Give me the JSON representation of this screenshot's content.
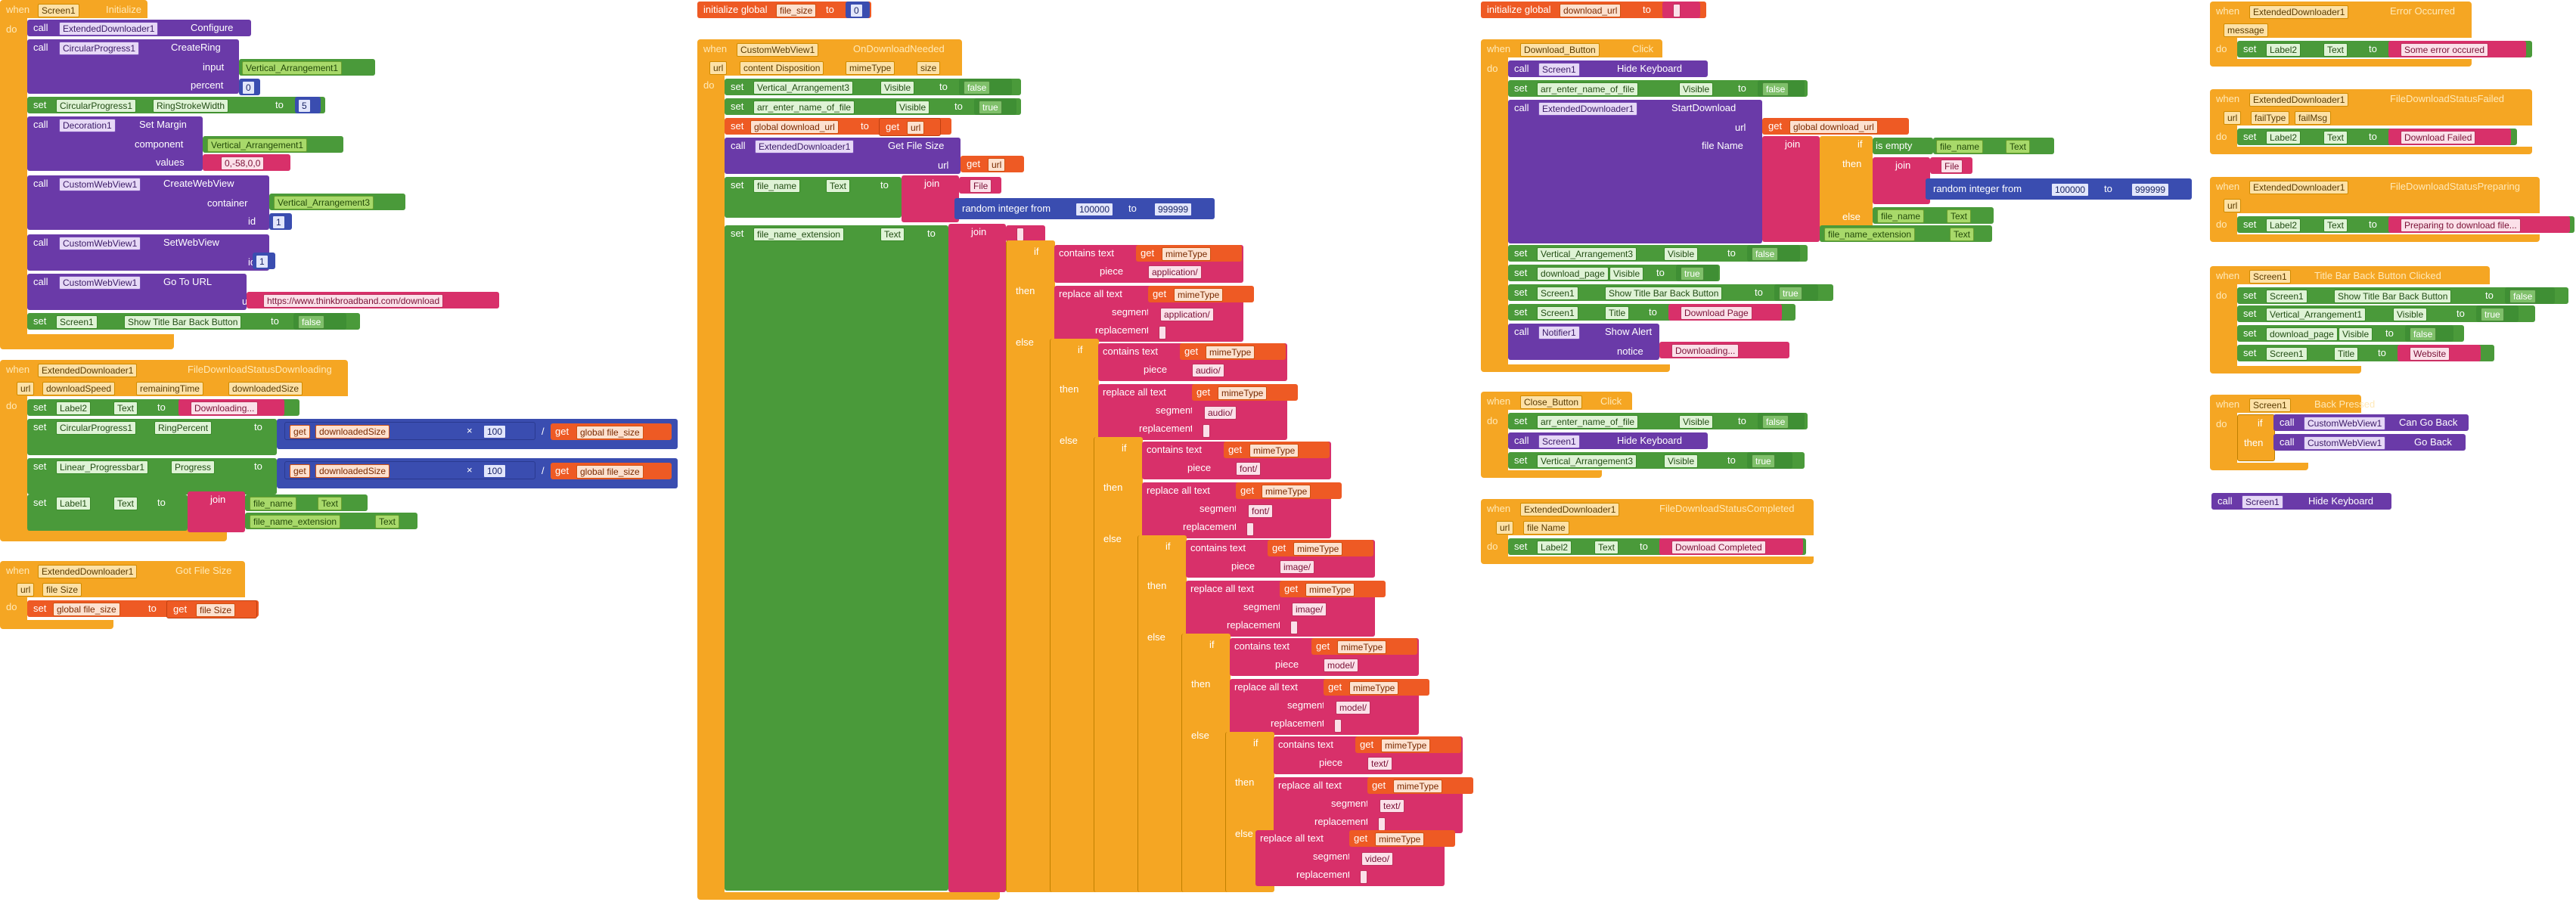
{
  "kw": {
    "when": "when",
    "do": "do",
    "call": "call",
    "set": "set",
    "to": "to",
    "get": "get",
    "if": "if",
    "then": "then",
    "else": "else",
    "join": "join"
  },
  "b1": {
    "comp": "Screen1",
    "evt": "Initialize",
    "l1": [
      "ExtendedDownloader1",
      "Configure"
    ],
    "l2": [
      "CircularProgress1",
      "CreateRing"
    ],
    "input_lbl": "input",
    "input_val": "Vertical_Arrangement1",
    "percent_lbl": "percent",
    "percent_val": "0",
    "l3": [
      "CircularProgress1",
      "RingStrokeWidth",
      "5"
    ],
    "l4": [
      "Decoration1",
      "Set Margin"
    ],
    "component_lbl": "component",
    "component_val": "Vertical_Arrangement1",
    "values_lbl": "values",
    "values_val": "0,-58,0,0",
    "l5": [
      "CustomWebView1",
      "CreateWebView"
    ],
    "container_lbl": "container",
    "container_val": "Vertical_Arrangement3",
    "id_lbl": "id",
    "id_val": "1",
    "l6": [
      "CustomWebView1",
      "SetWebView"
    ],
    "id2_val": "1",
    "l7": [
      "CustomWebView1",
      "Go To URL"
    ],
    "url_lbl": "url",
    "url_val": "https://www.thinkbroadband.com/download",
    "l8": [
      "Screen1",
      "Show Title Bar Back Button",
      "false"
    ]
  },
  "b2": {
    "comp": "ExtendedDownloader1",
    "evt": "FileDownloadStatusDownloading",
    "params": [
      "url",
      "downloadSpeed",
      "remainingTime",
      "downloadedSize"
    ],
    "l1": [
      "Label2",
      "Text",
      "Downloading..."
    ],
    "l2": [
      "CircularProgress1",
      "RingPercent"
    ],
    "l3": [
      "Linear_Progressbar1",
      "Progress"
    ],
    "get_ds": "downloadedSize",
    "times": "×",
    "hundred": "100",
    "div": "/",
    "get_gfs": "global file_size",
    "l4": [
      "Label1",
      "Text"
    ],
    "fn": "file_name",
    "fne": "file_name_extension",
    "text": "Text"
  },
  "b3": {
    "comp": "ExtendedDownloader1",
    "evt": "Got File Size",
    "params": [
      "url",
      "file Size"
    ],
    "l1": [
      "global file_size",
      "file Size"
    ]
  },
  "g1": {
    "label": "initialize global",
    "name": "file_size",
    "val": "0"
  },
  "b4": {
    "comp": "CustomWebView1",
    "evt": "OnDownloadNeeded",
    "params": [
      "url",
      "content Disposition",
      "mimeType",
      "size"
    ],
    "l1": [
      "Vertical_Arrangement3",
      "Visible",
      "false"
    ],
    "l2": [
      "arr_enter_name_of_file",
      "Visible",
      "true"
    ],
    "l3": [
      "global download_url",
      "url"
    ],
    "l4": [
      "ExtendedDownloader1",
      "Get File Size"
    ],
    "url_lbl": "url",
    "url_get": "url",
    "l5": [
      "file_name",
      "Text"
    ],
    "file_lit": "File",
    "rand": "random integer from",
    "from": "100000",
    "rto": "999999",
    "l6": [
      "file_name_extension",
      "Text"
    ],
    "contains": "contains text",
    "piece": "piece",
    "replace": "replace all text",
    "segment": "segment",
    "replacement": "replacement",
    "mime": "mimeType",
    "types": [
      "application/",
      "audio/",
      "font/",
      "image/",
      "model/",
      "text/",
      "video/"
    ],
    "empty": ""
  },
  "g2": {
    "label": "initialize global",
    "name": "download_url",
    "val": ""
  },
  "b5": {
    "comp": "Download_Button",
    "evt": "Click",
    "l1": [
      "Screen1",
      "Hide Keyboard"
    ],
    "l2": [
      "arr_enter_name_of_file",
      "Visible",
      "false"
    ],
    "l3": [
      "ExtendedDownloader1",
      "StartDownload"
    ],
    "url_lbl": "url",
    "url_get": "global download_url",
    "fn_lbl": "file Name",
    "isempty": "is empty",
    "fn": "file_name",
    "text": "Text",
    "file": "File",
    "rand": "random integer from",
    "from": "100000",
    "rto": "999999",
    "fne": "file_name_extension",
    "l4": [
      "Vertical_Arrangement3",
      "Visible",
      "false"
    ],
    "l5": [
      "download_page",
      "Visible",
      "true"
    ],
    "l6": [
      "Screen1",
      "Show Title Bar Back Button",
      "true"
    ],
    "l7": [
      "Screen1",
      "Title",
      "Download Page"
    ],
    "l8": [
      "Notifier1",
      "Show Alert"
    ],
    "notice_lbl": "notice",
    "notice_val": "Downloading..."
  },
  "b6": {
    "comp": "Close_Button",
    "evt": "Click",
    "l1": [
      "arr_enter_name_of_file",
      "Visible",
      "false"
    ],
    "l2": [
      "Screen1",
      "Hide Keyboard"
    ],
    "l3": [
      "Vertical_Arrangement3",
      "Visible",
      "true"
    ]
  },
  "b7": {
    "comp": "ExtendedDownloader1",
    "evt": "FileDownloadStatusCompleted",
    "params": [
      "url",
      "file Name"
    ],
    "l1": [
      "Label2",
      "Text",
      "Download Completed"
    ]
  },
  "b8": {
    "comp": "ExtendedDownloader1",
    "evt": "Error Occurred",
    "params": [
      "message"
    ],
    "l1": [
      "Label2",
      "Text",
      "Some error occured"
    ]
  },
  "b9": {
    "comp": "ExtendedDownloader1",
    "evt": "FileDownloadStatusFailed",
    "params": [
      "url",
      "failType",
      "failMsg"
    ],
    "l1": [
      "Label2",
      "Text",
      "Download Failed"
    ]
  },
  "b10": {
    "comp": "ExtendedDownloader1",
    "evt": "FileDownloadStatusPreparing",
    "params": [
      "url"
    ],
    "l1": [
      "Label2",
      "Text",
      "Preparing to download file..."
    ]
  },
  "b11": {
    "comp": "Screen1",
    "evt": "Title Bar Back Button Clicked",
    "l1": [
      "Screen1",
      "Show Title Bar Back Button",
      "false"
    ],
    "l2": [
      "Vertical_Arrangement1",
      "Visible",
      "true"
    ],
    "l3": [
      "download_page",
      "Visible",
      "false"
    ],
    "l4": [
      "Screen1",
      "Title",
      "Website"
    ]
  },
  "b12": {
    "comp": "Screen1",
    "evt": "Back Pressed",
    "l1": [
      "CustomWebView1",
      "Can Go Back"
    ],
    "l2": [
      "CustomWebView1",
      "Go Back"
    ]
  },
  "b13": {
    "comp": "Screen1",
    "evt": "Hide Keyboard"
  }
}
